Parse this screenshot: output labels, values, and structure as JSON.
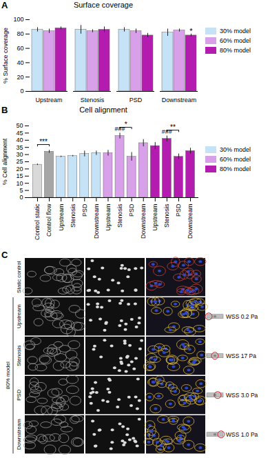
{
  "chart_data": [
    {
      "panel": "A",
      "type": "bar",
      "title": "Surface coverage",
      "categories": [
        "Upstream",
        "Stenosis",
        "PSD",
        "Downstream"
      ],
      "series": [
        {
          "name": "30% model",
          "color": "#c6e2f6",
          "values": [
            86,
            86,
            86,
            82
          ],
          "errors": [
            3,
            6,
            3,
            5
          ]
        },
        {
          "name": "60% model",
          "color": "#d7a0e8",
          "values": [
            84,
            84,
            84,
            85
          ],
          "errors": [
            3,
            2,
            3,
            2
          ]
        },
        {
          "name": "80% model",
          "color": "#b31cae",
          "values": [
            88,
            86,
            78,
            78
          ],
          "errors": [
            2,
            4,
            3,
            2
          ]
        }
      ],
      "ylim": [
        0,
        100
      ],
      "yticks": [
        0,
        20,
        40,
        60,
        80,
        100
      ],
      "y_label": "% Surface coverage",
      "legend": "right",
      "annotations": [
        {
          "text": "*",
          "category": "Downstream",
          "series": "80% model"
        }
      ]
    },
    {
      "panel": "B",
      "type": "bar",
      "title": "Cell alignment",
      "categories": [
        "Control static",
        "Control flow",
        "Upstream",
        "Stenosis",
        "PSD",
        "Downstream",
        "Upstream",
        "Stenosis",
        "PSD",
        "Downstream",
        "Upstream",
        "Stenosis",
        "PSD",
        "Downstream"
      ],
      "values": [
        23,
        32,
        28.5,
        29,
        30.5,
        31,
        31,
        43,
        28.5,
        38,
        36,
        41,
        28.5,
        32.5
      ],
      "errors": [
        0.5,
        1,
        0.5,
        0.5,
        2,
        1.5,
        2,
        2,
        3,
        2.5,
        2.5,
        2,
        2,
        2
      ],
      "colors": [
        "#d9d9d9",
        "#a6a6a6",
        "#c6e2f6",
        "#c6e2f6",
        "#c6e2f6",
        "#c6e2f6",
        "#d7a0e8",
        "#d7a0e8",
        "#d7a0e8",
        "#d7a0e8",
        "#b31cae",
        "#b31cae",
        "#b31cae",
        "#b31cae"
      ],
      "legend_entries": [
        {
          "name": "30% model",
          "color": "#c6e2f6"
        },
        {
          "name": "60% model",
          "color": "#d7a0e8"
        },
        {
          "name": "80% model",
          "color": "#b31cae"
        }
      ],
      "legend": "right",
      "ylim": [
        0,
        50
      ],
      "yticks": [
        0,
        5,
        10,
        15,
        20,
        25,
        30,
        35,
        40,
        45,
        50
      ],
      "y_label": "% Cell alignment",
      "annotations": [
        {
          "text": "***",
          "bars": [
            0,
            1
          ]
        },
        {
          "text": "###",
          "bars": [
            7
          ]
        },
        {
          "text": "*",
          "bars": [
            7,
            8
          ]
        },
        {
          "text": "###",
          "bars": [
            11
          ]
        },
        {
          "text": "**",
          "bars": [
            11,
            12
          ]
        }
      ]
    }
  ],
  "image_panel": {
    "panel": "C",
    "row_labels": [
      "Static control",
      "Upstream",
      "Stenosis",
      "PSD",
      "Downstream"
    ],
    "group_label": "80% model",
    "wss_labels": [
      null,
      "WSS 0.2 Pa",
      "WSS 17 Pa",
      "WSS 3.0 Pa",
      "WSS 1.0 Pa"
    ]
  }
}
